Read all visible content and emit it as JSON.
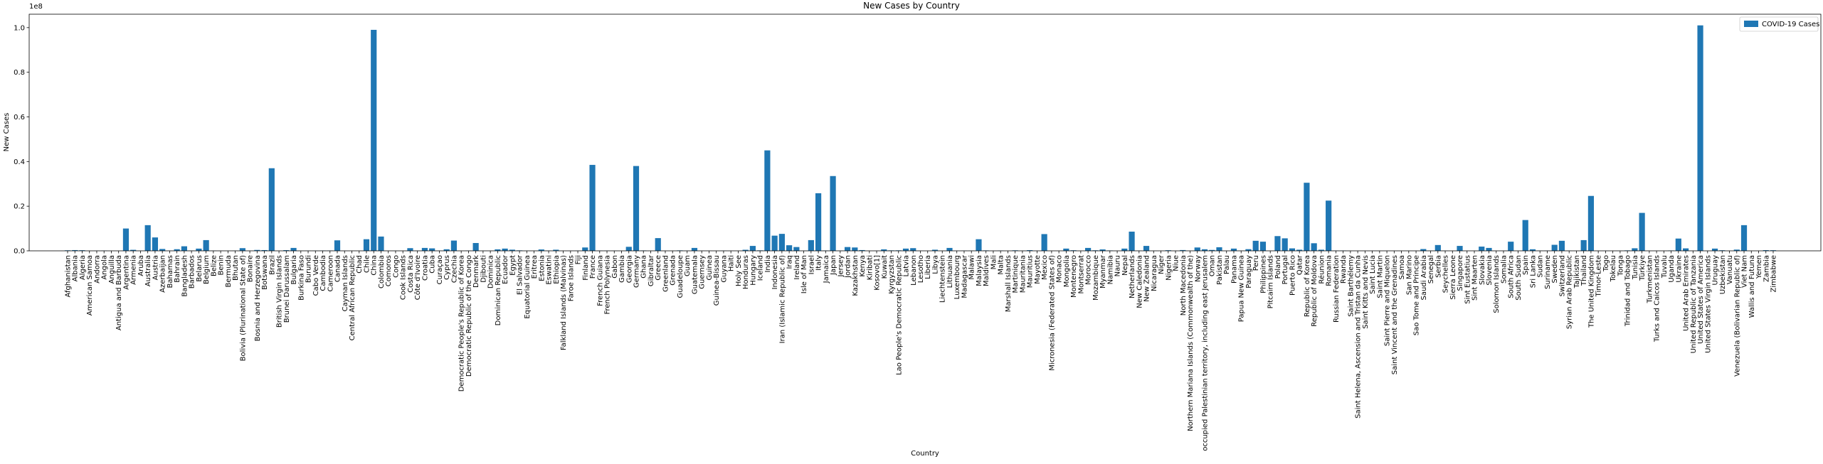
{
  "chart_data": {
    "type": "bar",
    "title": "New Cases by Country",
    "xlabel": "Country",
    "ylabel": "New Cases",
    "y_scale_label": "1e8",
    "yticks": [
      "0.0",
      "0.2",
      "0.4",
      "0.6",
      "0.8",
      "1.0"
    ],
    "ylim": [
      0,
      1.06
    ],
    "legend": {
      "placement": "top-right",
      "label": "COVID-19 Cases"
    },
    "grid": false,
    "bar_color": "#1f77b4",
    "categories": [
      "Afghanistan",
      "Albania",
      "Algeria",
      "American Samoa",
      "Andorra",
      "Angola",
      "Anguilla",
      "Antigua and Barbuda",
      "Argentina",
      "Armenia",
      "Aruba",
      "Australia",
      "Austria",
      "Azerbaijan",
      "Bahamas",
      "Bahrain",
      "Bangladesh",
      "Barbados",
      "Belarus",
      "Belgium",
      "Belize",
      "Benin",
      "Bermuda",
      "Bhutan",
      "Bolivia (Plurinational State of)",
      "Bonaire",
      "Bosnia and Herzegovina",
      "Botswana",
      "Brazil",
      "British Virgin Islands",
      "Brunei Darussalam",
      "Bulgaria",
      "Burkina Faso",
      "Burundi",
      "Cabo Verde",
      "Cambodia",
      "Cameroon",
      "Canada",
      "Cayman Islands",
      "Central African Republic",
      "Chad",
      "Chile",
      "China",
      "Colombia",
      "Comoros",
      "Congo",
      "Cook Islands",
      "Costa Rica",
      "Côte d'Ivoire",
      "Croatia",
      "Cuba",
      "Curaçao",
      "Cyprus",
      "Czechia",
      "Democratic People's Republic of Korea",
      "Democratic Republic of the Congo",
      "Denmark",
      "Djibouti",
      "Dominica",
      "Dominican Republic",
      "Ecuador",
      "Egypt",
      "El Salvador",
      "Equatorial Guinea",
      "Eritrea",
      "Estonia",
      "Eswatini",
      "Ethiopia",
      "Falkland Islands (Malvinas)",
      "Faroe Islands",
      "Fiji",
      "Finland",
      "France",
      "French Guiana",
      "French Polynesia",
      "Gabon",
      "Gambia",
      "Georgia",
      "Germany",
      "Ghana",
      "Gibraltar",
      "Greece",
      "Greenland",
      "Grenada",
      "Guadeloupe",
      "Guam",
      "Guatemala",
      "Guernsey",
      "Guinea",
      "Guinea-Bissau",
      "Guyana",
      "Haiti",
      "Holy See",
      "Honduras",
      "Hungary",
      "Iceland",
      "India",
      "Indonesia",
      "Iran (Islamic Republic of)",
      "Iraq",
      "Ireland",
      "Isle of Man",
      "Israel",
      "Italy",
      "Jamaica",
      "Japan",
      "Jersey",
      "Jordan",
      "Kazakhstan",
      "Kenya",
      "Kiribati",
      "Kosovo[1]",
      "Kuwait",
      "Kyrgyzstan",
      "Lao People's Democratic Republic",
      "Latvia",
      "Lebanon",
      "Lesotho",
      "Liberia",
      "Libya",
      "Liechtenstein",
      "Lithuania",
      "Luxembourg",
      "Madagascar",
      "Malawi",
      "Malaysia",
      "Maldives",
      "Mali",
      "Malta",
      "Marshall Islands",
      "Martinique",
      "Mauritania",
      "Mauritius",
      "Mayotte",
      "Mexico",
      "Micronesia (Federated States of)",
      "Monaco",
      "Mongolia",
      "Montenegro",
      "Montserrat",
      "Morocco",
      "Mozambique",
      "Myanmar",
      "Namibia",
      "Nauru",
      "Nepal",
      "Netherlands",
      "New Caledonia",
      "New Zealand",
      "Nicaragua",
      "Niger",
      "Nigeria",
      "Niue",
      "North Macedonia",
      "Northern Mariana Islands (Commonwealth of the)",
      "Norway",
      "occupied Palestinian territory, including east Jerusalem",
      "Oman",
      "Pakistan",
      "Palau",
      "Panama",
      "Papua New Guinea",
      "Paraguay",
      "Peru",
      "Philippines",
      "Pitcairn Islands",
      "Poland",
      "Portugal",
      "Puerto Rico",
      "Qatar",
      "Republic of Korea",
      "Republic of Moldova",
      "Réunion",
      "Romania",
      "Russian Federation",
      "Rwanda",
      "Saint Barthélemy",
      "Saint Helena, Ascension and Tristan da Cunha",
      "Saint Kitts and Nevis",
      "Saint Lucia",
      "Saint Martin",
      "Saint Pierre and Miquelon",
      "Saint Vincent and the Grenadines",
      "Samoa",
      "San Marino",
      "Sao Tome and Principe",
      "Saudi Arabia",
      "Senegal",
      "Serbia",
      "Seychelles",
      "Sierra Leone",
      "Singapore",
      "Sint Eustatius",
      "Sint Maarten",
      "Slovakia",
      "Slovenia",
      "Solomon Islands",
      "Somalia",
      "South Africa",
      "South Sudan",
      "Spain",
      "Sri Lanka",
      "Sudan",
      "Suriname",
      "Sweden",
      "Switzerland",
      "Syrian Arab Republic",
      "Tajikistan",
      "Thailand",
      "The United Kingdom",
      "Timor-Leste",
      "Togo",
      "Tokelau",
      "Tonga",
      "Trinidad and Tobago",
      "Tunisia",
      "Türkiye",
      "Turkmenistan",
      "Turks and Caicos Islands",
      "Tuvalu",
      "Uganda",
      "Ukraine",
      "United Arab Emirates",
      "United Republic of Tanzania",
      "United States of America",
      "United States Virgin Islands",
      "Uruguay",
      "Uzbekistan",
      "Vanuatu",
      "Venezuela (Bolivarian Republic of)",
      "Viet Nam",
      "Wallis and Futuna",
      "Yemen",
      "Zambia",
      "Zimbabwe"
    ],
    "values": [
      0.0023,
      0.0033,
      0.0027,
      0.0001,
      0.0005,
      0.001,
      0.0,
      0.0001,
      0.1,
      0.0045,
      0.0004,
      0.115,
      0.06,
      0.0083,
      0.0004,
      0.0072,
      0.0204,
      0.0011,
      0.0099,
      0.048,
      0.0007,
      0.0003,
      0.0002,
      0.0006,
      0.012,
      0.0001,
      0.004,
      0.0033,
      0.37,
      0.0001,
      0.003,
      0.013,
      0.0002,
      0.0005,
      0.0006,
      0.0014,
      0.0012,
      0.047,
      0.0003,
      0.0001,
      0.0001,
      0.052,
      0.99,
      0.064,
      0.0001,
      0.0002,
      0.0001,
      0.012,
      0.0009,
      0.013,
      0.011,
      0.0005,
      0.007,
      0.046,
      0.0001,
      0.001,
      0.035,
      0.0002,
      0.0001,
      0.0066,
      0.01,
      0.0052,
      0.002,
      0.0002,
      0.0001,
      0.0061,
      0.0007,
      0.005,
      0.0001,
      0.0003,
      0.0007,
      0.015,
      0.385,
      0.001,
      0.0008,
      0.0005,
      0.0001,
      0.018,
      0.38,
      0.0017,
      0.0002,
      0.057,
      0.0001,
      0.0002,
      0.002,
      0.0005,
      0.013,
      0.0004,
      0.0004,
      0.0001,
      0.0007,
      0.0003,
      0.0,
      0.0047,
      0.022,
      0.0021,
      0.45,
      0.068,
      0.076,
      0.025,
      0.017,
      0.0004,
      0.048,
      0.258,
      0.0016,
      0.335,
      0.0007,
      0.017,
      0.015,
      0.0034,
      0.0001,
      0.0003,
      0.0066,
      0.002,
      0.0022,
      0.01,
      0.012,
      0.0003,
      0.0001,
      0.005,
      0.0002,
      0.013,
      0.0004,
      0.0007,
      0.0009,
      0.052,
      0.0019,
      0.0003,
      0.0012,
      0.0001,
      0.0023,
      0.0006,
      0.003,
      0.0004,
      0.075,
      0.0001,
      0.0001,
      0.01,
      0.0025,
      0.0001,
      0.013,
      0.0023,
      0.0063,
      0.0017,
      0.0001,
      0.01,
      0.086,
      0.0008,
      0.022,
      0.0002,
      0.0001,
      0.0027,
      0.0,
      0.0035,
      0.0001,
      0.015,
      0.007,
      0.004,
      0.016,
      0.0001,
      0.01,
      0.0005,
      0.0074,
      0.045,
      0.041,
      0.0,
      0.066,
      0.056,
      0.011,
      0.005,
      0.305,
      0.034,
      0.005,
      0.225,
      0.001,
      0.0013,
      0.0001,
      0.0,
      0.0001,
      0.0003,
      0.0001,
      0.0,
      0.0001,
      0.0001,
      0.0002,
      0.0001,
      0.008,
      0.0009,
      0.026,
      0.0005,
      0.0001,
      0.022,
      0.0,
      0.0001,
      0.019,
      0.013,
      0.0001,
      0.0003,
      0.041,
      0.0002,
      0.138,
      0.007,
      0.0006,
      0.001,
      0.027,
      0.045,
      0.0006,
      0.0001,
      0.048,
      0.246,
      0.0002,
      0.0004,
      0.0,
      0.0002,
      0.002,
      0.0115,
      0.17,
      0.0,
      0.0001,
      0.0,
      0.0017,
      0.055,
      0.011,
      0.0004,
      1.01,
      0.0002,
      0.01,
      0.0025,
      0.0001,
      0.0055,
      0.115,
      0.0,
      0.0001,
      0.003,
      0.0027
    ]
  }
}
